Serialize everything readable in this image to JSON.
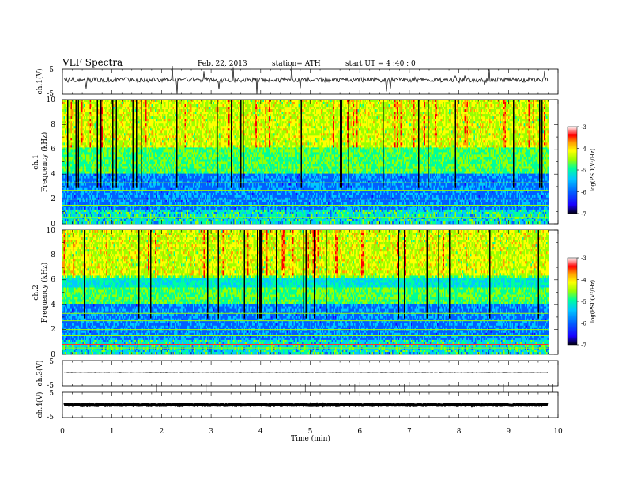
{
  "header": {
    "title": "VLF  Spectra",
    "date": "Feb. 22, 2013",
    "station": "station= ATH",
    "start": "start  UT  =   4  :40 : 0"
  },
  "xaxis": {
    "label": "Time  (min)",
    "ticks": [
      "0",
      "1",
      "2",
      "3",
      "4",
      "5",
      "6",
      "7",
      "8",
      "9",
      "10"
    ]
  },
  "panels": {
    "ch1v": {
      "label": "ch.1(V)",
      "ticks": [
        "5",
        "-5"
      ]
    },
    "ch1": {
      "label": "ch.1",
      "ylabel": "Frequency  (kHz)",
      "ticks": [
        "10",
        "8",
        "6",
        "4",
        "2",
        "0"
      ]
    },
    "ch2": {
      "label": "ch.2",
      "ylabel": "Frequency  (kHz)",
      "ticks": [
        "10",
        "8",
        "6",
        "4",
        "2",
        "0"
      ]
    },
    "ch3v": {
      "label": "ch.3(V)",
      "ticks": [
        "5",
        "-5"
      ]
    },
    "ch4v": {
      "label": "ch.4(V)",
      "ticks": [
        "5",
        "-5"
      ]
    }
  },
  "colorbar": {
    "label": "log(PSD(V²/Hz)",
    "ticks": [
      "-3",
      "-4",
      "-5",
      "-6",
      "-7"
    ]
  },
  "chart_data": [
    {
      "type": "line",
      "name": "ch.1(V)",
      "xlim": [
        0,
        10
      ],
      "ylim": [
        -5,
        5
      ],
      "x_unit": "min",
      "y_unit": "V",
      "baseline": 0
    },
    {
      "type": "heatmap",
      "name": "ch.1",
      "xlim": [
        0,
        10
      ],
      "ylim": [
        0,
        10
      ],
      "x_unit": "min",
      "y_unit": "kHz",
      "zlim": [
        -7,
        -3
      ],
      "data_extent_x": [
        0,
        9.8
      ]
    },
    {
      "type": "heatmap",
      "name": "ch.2",
      "xlim": [
        0,
        10
      ],
      "ylim": [
        0,
        10
      ],
      "x_unit": "min",
      "y_unit": "kHz",
      "zlim": [
        -7,
        -3
      ],
      "data_extent_x": [
        0,
        9.8
      ]
    },
    {
      "type": "line",
      "name": "ch.3(V)",
      "xlim": [
        0,
        10
      ],
      "ylim": [
        -5,
        5
      ],
      "x_unit": "min",
      "y_unit": "V",
      "baseline": 0
    },
    {
      "type": "line",
      "name": "ch.4(V)",
      "xlim": [
        0,
        10
      ],
      "ylim": [
        -5,
        5
      ],
      "x_unit": "min",
      "y_unit": "V",
      "baseline": 0
    }
  ],
  "colors": {
    "scale": [
      "#000000",
      "#1a00ff",
      "#0060ff",
      "#00c8ff",
      "#00ff9a",
      "#9aff00",
      "#ffff00",
      "#ff9a00",
      "#ff0000",
      "#ffffff"
    ]
  }
}
